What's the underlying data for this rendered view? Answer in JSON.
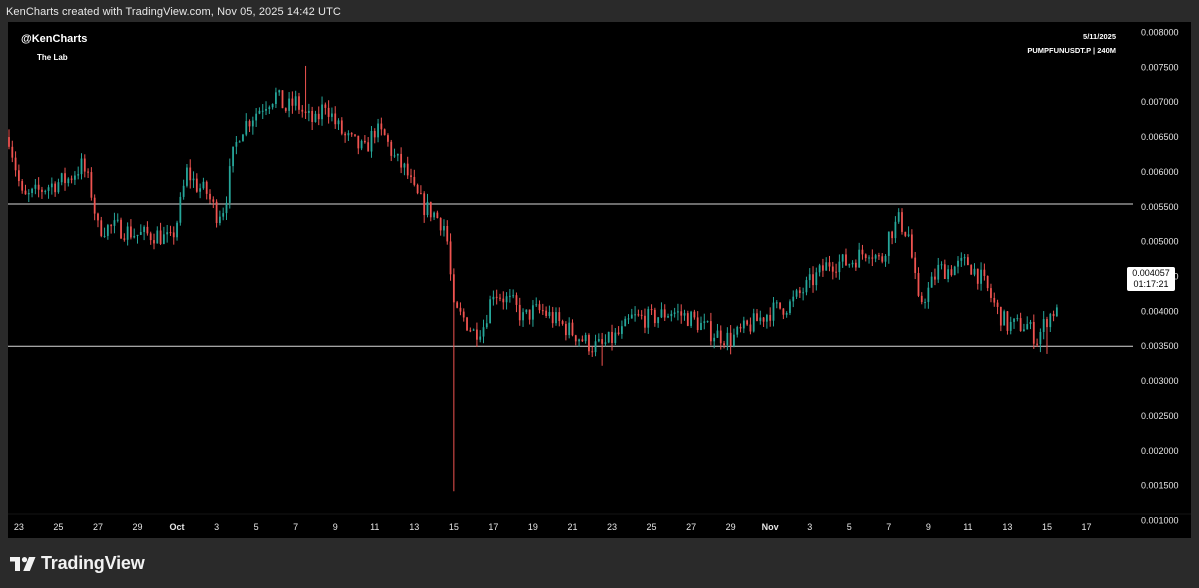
{
  "caption": "KenCharts created with TradingView.com, Nov 05, 2025 14:42 UTC",
  "overlay": {
    "handle": "@KenCharts",
    "subtitle": "The Lab",
    "date": "5/11/2025",
    "symbol": "PUMPFUNUSDT.P | 240M"
  },
  "price_badge": {
    "price": "0.004057",
    "countdown": "01:17:21"
  },
  "brand": "TradingView",
  "colors": {
    "up": "#26a69a",
    "down": "#ef5350",
    "background": "#000000",
    "level_line": "#d9d9d9"
  },
  "chart_data": {
    "type": "candlestick",
    "x_ticks": [
      "23",
      "25",
      "27",
      "29",
      "Oct",
      "3",
      "5",
      "7",
      "9",
      "11",
      "13",
      "15",
      "17",
      "19",
      "21",
      "23",
      "25",
      "27",
      "29",
      "Nov",
      "3",
      "5",
      "7",
      "9",
      "11",
      "13",
      "15",
      "17"
    ],
    "y_ticks": [
      "0.008000",
      "0.007500",
      "0.007000",
      "0.006500",
      "0.006000",
      "0.005500",
      "0.005000",
      "0.004500",
      "0.004000",
      "0.003500",
      "0.003000",
      "0.002500",
      "0.002000",
      "0.001500",
      "0.001000"
    ],
    "ylim": [
      0.00075,
      0.00815
    ],
    "x_range_days": [
      -8.5,
      48.3
    ],
    "horizontal_levels": [
      0.00554,
      0.0035
    ],
    "anchors": [
      [
        -8.5,
        0.0065
      ],
      [
        -7.8,
        0.0056
      ],
      [
        -6.5,
        0.0058
      ],
      [
        -5.5,
        0.0059
      ],
      [
        -4.8,
        0.0061
      ],
      [
        -4.4,
        0.0058
      ],
      [
        -4.0,
        0.0052
      ],
      [
        -3.0,
        0.0052
      ],
      [
        -2.0,
        0.0051
      ],
      [
        -1.0,
        0.0051
      ],
      [
        -0.3,
        0.005
      ],
      [
        0.0,
        0.0053
      ],
      [
        0.5,
        0.006
      ],
      [
        1.0,
        0.0058
      ],
      [
        1.5,
        0.0057
      ],
      [
        2.0,
        0.0054
      ],
      [
        2.4,
        0.0055
      ],
      [
        2.8,
        0.0062
      ],
      [
        3.2,
        0.0066
      ],
      [
        3.8,
        0.0068
      ],
      [
        4.5,
        0.007
      ],
      [
        5.0,
        0.0071
      ],
      [
        5.5,
        0.0069
      ],
      [
        6.0,
        0.007
      ],
      [
        6.5,
        0.0068
      ],
      [
        7.0,
        0.0067
      ],
      [
        7.5,
        0.007
      ],
      [
        8.0,
        0.0067
      ],
      [
        8.5,
        0.0065
      ],
      [
        9.0,
        0.0064
      ],
      [
        9.5,
        0.0063
      ],
      [
        10.0,
        0.0066
      ],
      [
        10.5,
        0.0065
      ],
      [
        11.0,
        0.0062
      ],
      [
        11.6,
        0.006
      ],
      [
        12.0,
        0.0057
      ],
      [
        12.5,
        0.0055
      ],
      [
        13.0,
        0.0054
      ],
      [
        13.6,
        0.0052
      ],
      [
        14.0,
        0.004
      ],
      [
        14.5,
        0.0039
      ],
      [
        15.0,
        0.0037
      ],
      [
        15.5,
        0.0038
      ],
      [
        16.0,
        0.0043
      ],
      [
        16.5,
        0.0042
      ],
      [
        17.0,
        0.0041
      ],
      [
        17.5,
        0.0039
      ],
      [
        18.0,
        0.004
      ],
      [
        18.5,
        0.004
      ],
      [
        19.0,
        0.0039
      ],
      [
        20.0,
        0.0037
      ],
      [
        21.0,
        0.0035
      ],
      [
        21.5,
        0.0035
      ],
      [
        22.0,
        0.0036
      ],
      [
        22.5,
        0.0037
      ],
      [
        23.0,
        0.0039
      ],
      [
        24.0,
        0.0039
      ],
      [
        25.0,
        0.004
      ],
      [
        26.0,
        0.0039
      ],
      [
        26.5,
        0.0038
      ],
      [
        27.0,
        0.0037
      ],
      [
        28.0,
        0.0036
      ],
      [
        29.0,
        0.0038
      ],
      [
        30.0,
        0.004
      ],
      [
        31.0,
        0.0041
      ],
      [
        32.0,
        0.0044
      ],
      [
        33.0,
        0.0047
      ],
      [
        34.0,
        0.0047
      ],
      [
        35.0,
        0.0049
      ],
      [
        35.6,
        0.0047
      ],
      [
        36.0,
        0.0051
      ],
      [
        36.5,
        0.0053
      ],
      [
        37.0,
        0.0051
      ],
      [
        37.5,
        0.0041
      ],
      [
        38.0,
        0.0043
      ],
      [
        38.5,
        0.0046
      ],
      [
        39.0,
        0.0046
      ],
      [
        40.0,
        0.0047
      ],
      [
        40.6,
        0.0045
      ],
      [
        41.0,
        0.0043
      ],
      [
        41.5,
        0.004
      ],
      [
        42.0,
        0.0038
      ],
      [
        42.5,
        0.0038
      ],
      [
        43.0,
        0.0038
      ],
      [
        43.5,
        0.0036
      ],
      [
        44.0,
        0.0039
      ],
      [
        44.5,
        0.004057
      ]
    ]
  }
}
